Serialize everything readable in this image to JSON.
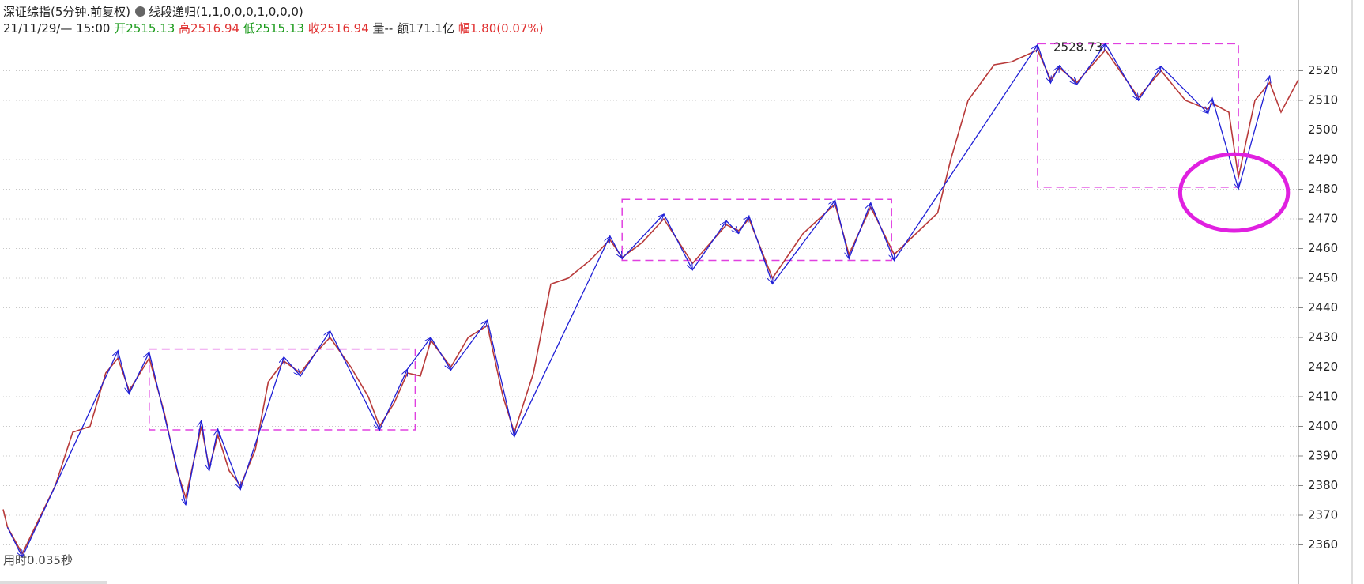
{
  "header": {
    "title": "深证综指(5分钟.前复权)",
    "indicator": "线段递归(1,1,0,0,0,1,0,0,0)",
    "time": "21/11/29/— 15:00",
    "open_label": "开",
    "open": "2515.13",
    "high_label": "高",
    "high": "2516.94",
    "low_label": "低",
    "low": "2515.13",
    "close_label": "收",
    "close": "2516.94",
    "volume": "量--",
    "amount": "额171.1亿",
    "change_label": "幅",
    "change": "1.80(0.07%)",
    "footer": "用时0.035秒"
  },
  "chart_data": {
    "type": "line",
    "xlim": [
      0,
      1490
    ],
    "ylim": [
      2354,
      2538
    ],
    "yticks": [
      2360,
      2370,
      2380,
      2390,
      2400,
      2410,
      2420,
      2430,
      2440,
      2450,
      2460,
      2470,
      2480,
      2490,
      2500,
      2510,
      2520
    ],
    "grid": true,
    "series": [
      {
        "color": "#b83a3a",
        "x": [
          0,
          5,
          22,
          40,
          60,
          80,
          100,
          118,
          132,
          145,
          168,
          185,
          200,
          210,
          228,
          237,
          247,
          260,
          273,
          290,
          305,
          323,
          342,
          360,
          376,
          400,
          420,
          433,
          450,
          465,
          480,
          492,
          515,
          535,
          557,
          575,
          588,
          610,
          630,
          650,
          675,
          698,
          712,
          735,
          760,
          793,
          832,
          846,
          858,
          885,
          920,
          957,
          973,
          998,
          1025,
          1050,
          1075,
          1090,
          1110,
          1140,
          1160,
          1190,
          1205,
          1215,
          1235,
          1268,
          1306,
          1332,
          1360,
          1386,
          1391,
          1410,
          1421,
          1440,
          1457,
          1470,
          1490
        ],
        "values": [
          2372,
          2366,
          2357,
          2368,
          2380,
          2398,
          2400,
          2418,
          2423,
          2412,
          2423,
          2405,
          2385,
          2376,
          2400,
          2386,
          2397,
          2385,
          2380,
          2392,
          2415,
          2422,
          2418,
          2425,
          2430,
          2420,
          2410,
          2400,
          2408,
          2418,
          2417,
          2429,
          2420,
          2430,
          2434,
          2410,
          2398,
          2418,
          2448,
          2450,
          2456,
          2463,
          2457,
          2462,
          2470,
          2455,
          2468,
          2466,
          2470,
          2450,
          2465,
          2475,
          2458,
          2474,
          2458,
          2465,
          2472,
          2490,
          2510,
          2522,
          2523,
          2527,
          2517,
          2521,
          2516,
          2527,
          2511,
          2520,
          2510,
          2507,
          2509,
          2506,
          2484,
          2510,
          2516,
          2506,
          2517
        ]
      },
      {
        "color": "#1f1fd6",
        "x": [
          5,
          22,
          132,
          145,
          168,
          210,
          228,
          237,
          247,
          273,
          323,
          342,
          376,
          433,
          465,
          492,
          515,
          557,
          588,
          698,
          712,
          760,
          793,
          832,
          846,
          858,
          885,
          957,
          973,
          998,
          1025,
          1190,
          1205,
          1215,
          1235,
          1268,
          1306,
          1332,
          1386,
          1391,
          1421,
          1457
        ],
        "values": [
          2365.9,
          2355.9,
          2425.5,
          2411,
          2425,
          2373.5,
          2402,
          2385,
          2399,
          2378.8,
          2423.4,
          2417,
          2432.2,
          2398.8,
          2419.3,
          2430,
          2419,
          2435.8,
          2396.5,
          2464.2,
          2456.6,
          2471.6,
          2452.8,
          2469.3,
          2465.1,
          2471,
          2448.1,
          2476.3,
          2456.6,
          2475.4,
          2456,
          2528.73,
          2515.9,
          2521.7,
          2515.3,
          2529.1,
          2510,
          2521.5,
          2505.6,
          2510.6,
          2480.1,
          2518.3
        ]
      }
    ],
    "boxes": [
      {
        "x": [
          168,
          474
        ],
        "y": [
          2398.8,
          2426.1
        ]
      },
      {
        "x": [
          712,
          1022
        ],
        "y": [
          2456,
          2476.6
        ]
      },
      {
        "x": [
          1190,
          1421
        ],
        "y": [
          2480.7,
          2529.1
        ]
      }
    ],
    "ellipse": {
      "x": 1416,
      "y": 2478.9,
      "rx": 62,
      "ry": 12.9
    },
    "peak_label": {
      "label": "2528.73",
      "x": 1190,
      "y": 2528.73
    }
  }
}
